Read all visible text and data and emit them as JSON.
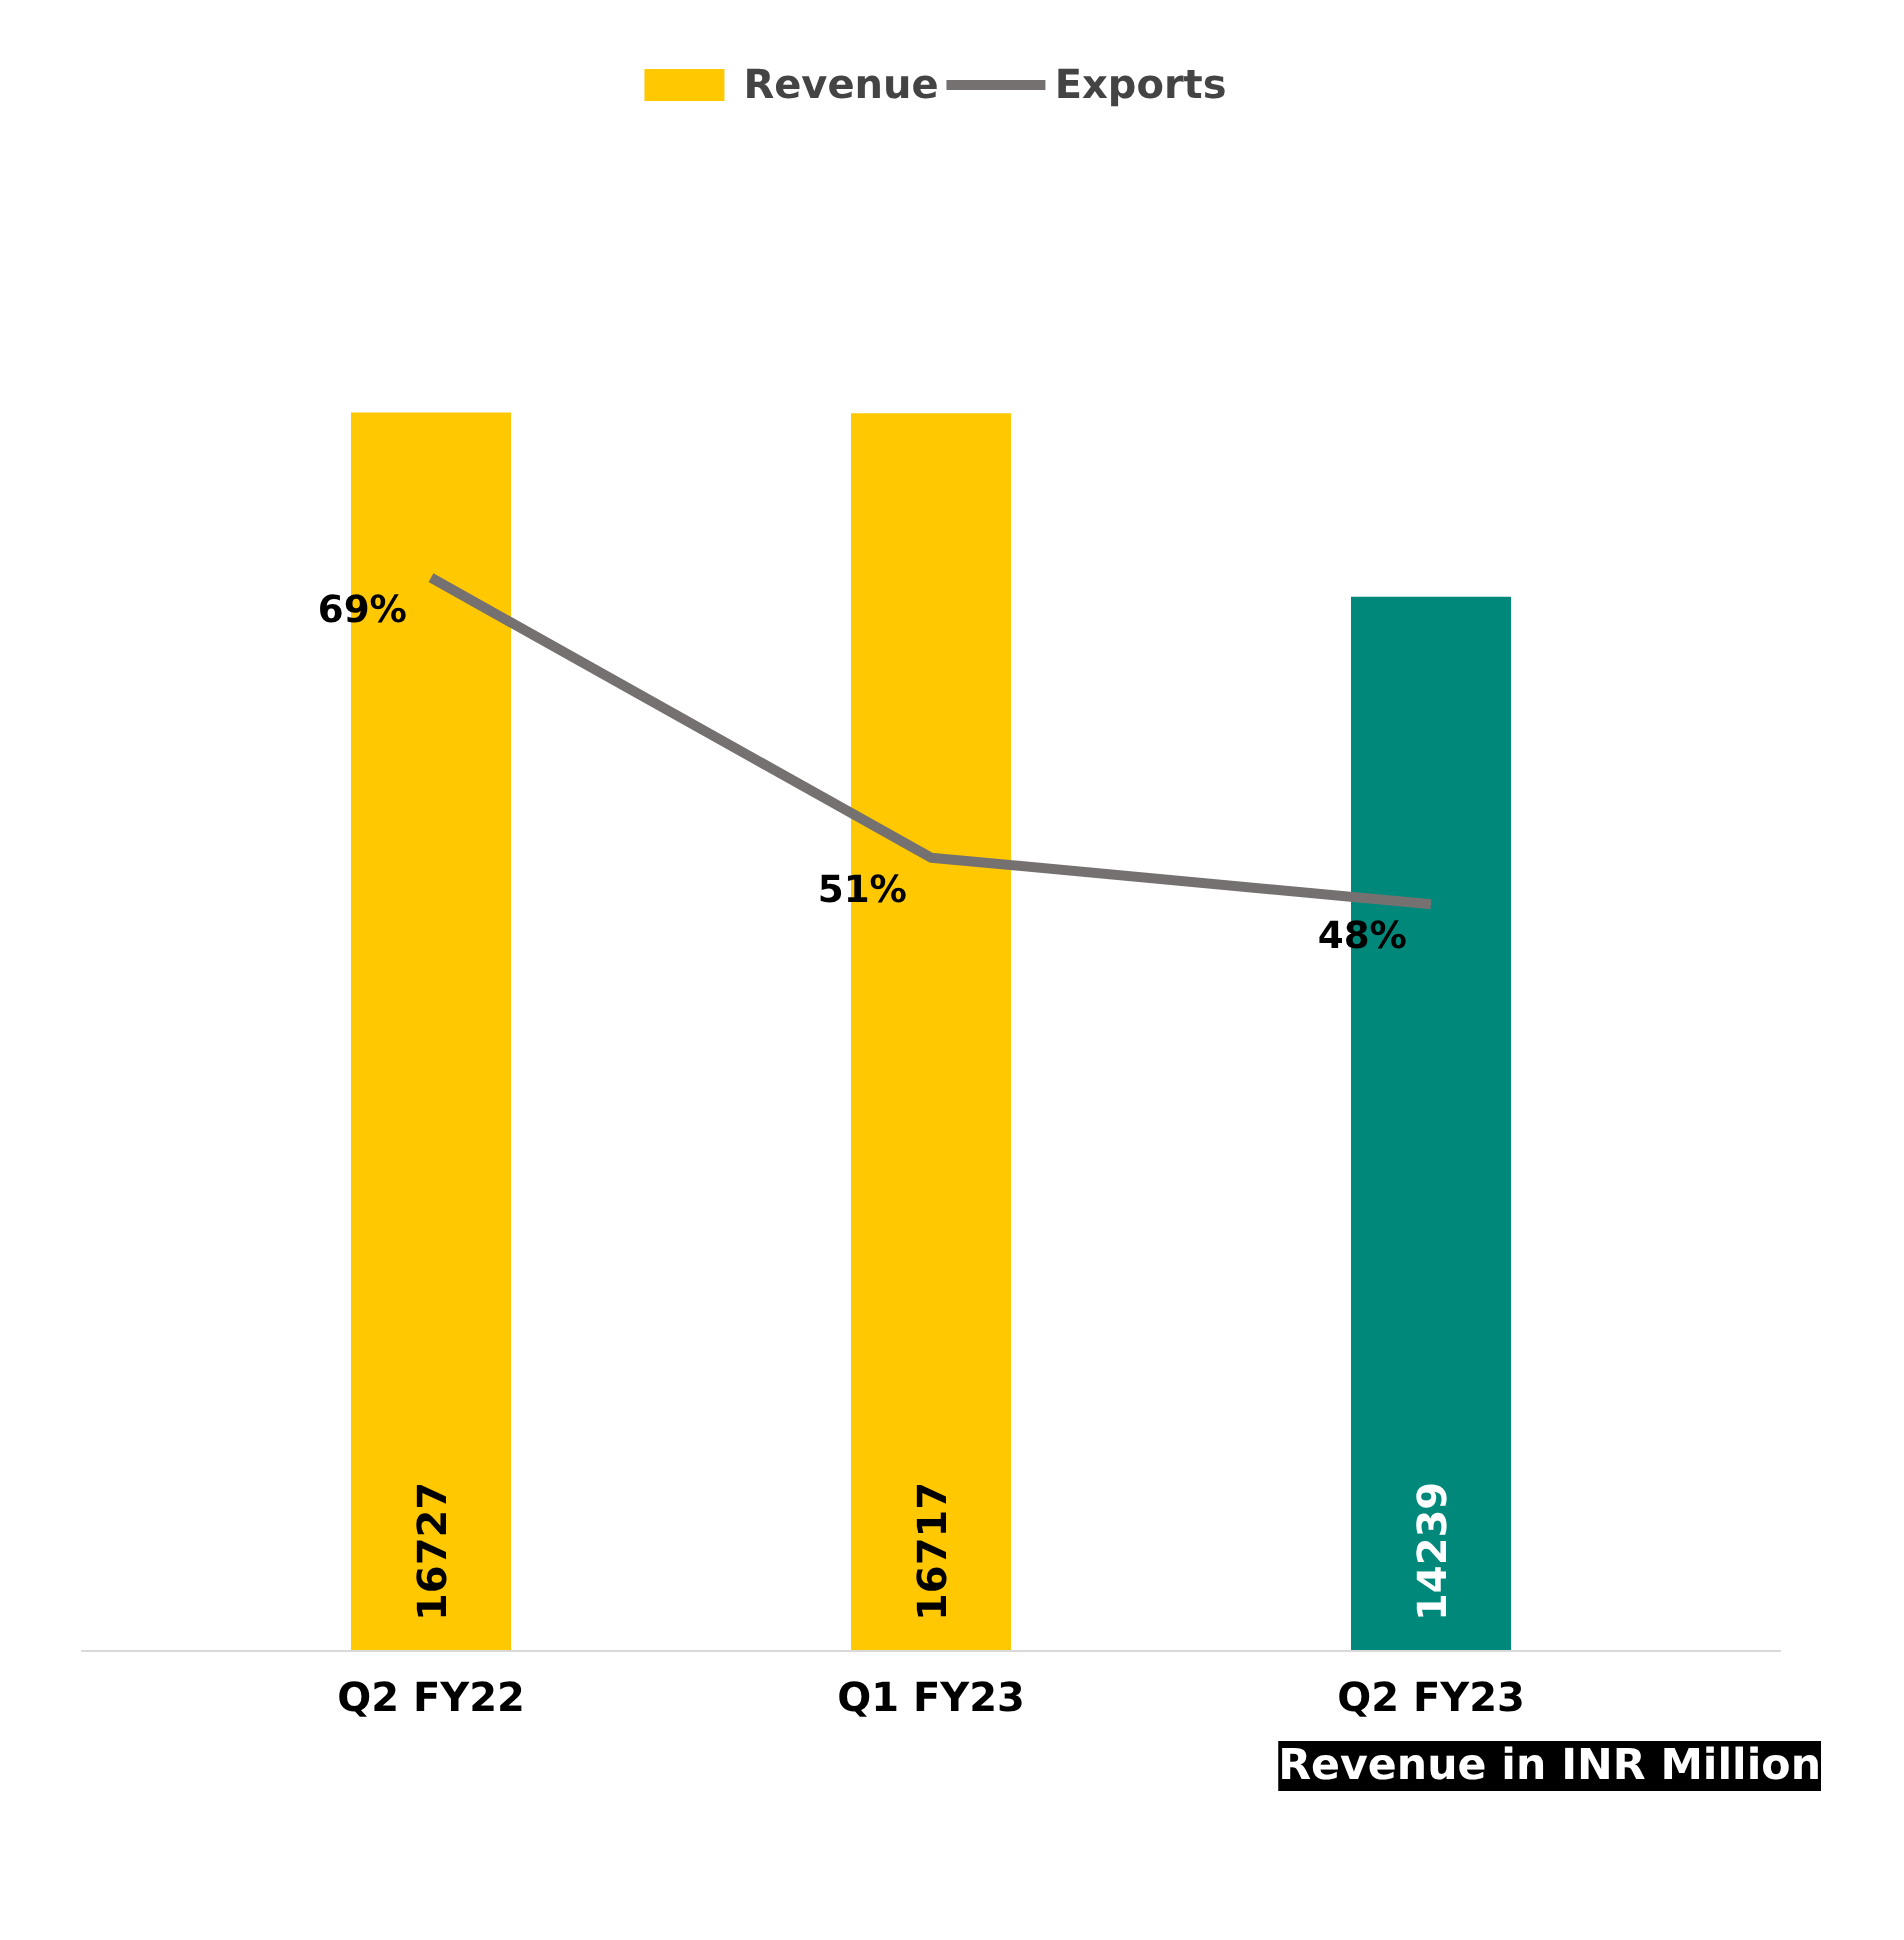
{
  "chart_data": {
    "type": "bar",
    "categories": [
      "Q2 FY22",
      "Q1 FY23",
      "Q2 FY23"
    ],
    "series": [
      {
        "name": "Revenue",
        "color": "#ffc800",
        "colors": [
          "#ffc800",
          "#ffc800",
          "#00897b"
        ],
        "values": [
          16727,
          16717,
          14239
        ]
      },
      {
        "name": "Exports",
        "type": "line",
        "color": "#757171",
        "axis": "y2",
        "values": [
          69,
          51,
          48
        ],
        "value_labels": [
          "69%",
          "51%",
          "48%"
        ]
      }
    ],
    "data_labels": true,
    "legend": "top",
    "tick_labels": "x",
    "annotations": [
      "Revenue in INR Million"
    ]
  }
}
